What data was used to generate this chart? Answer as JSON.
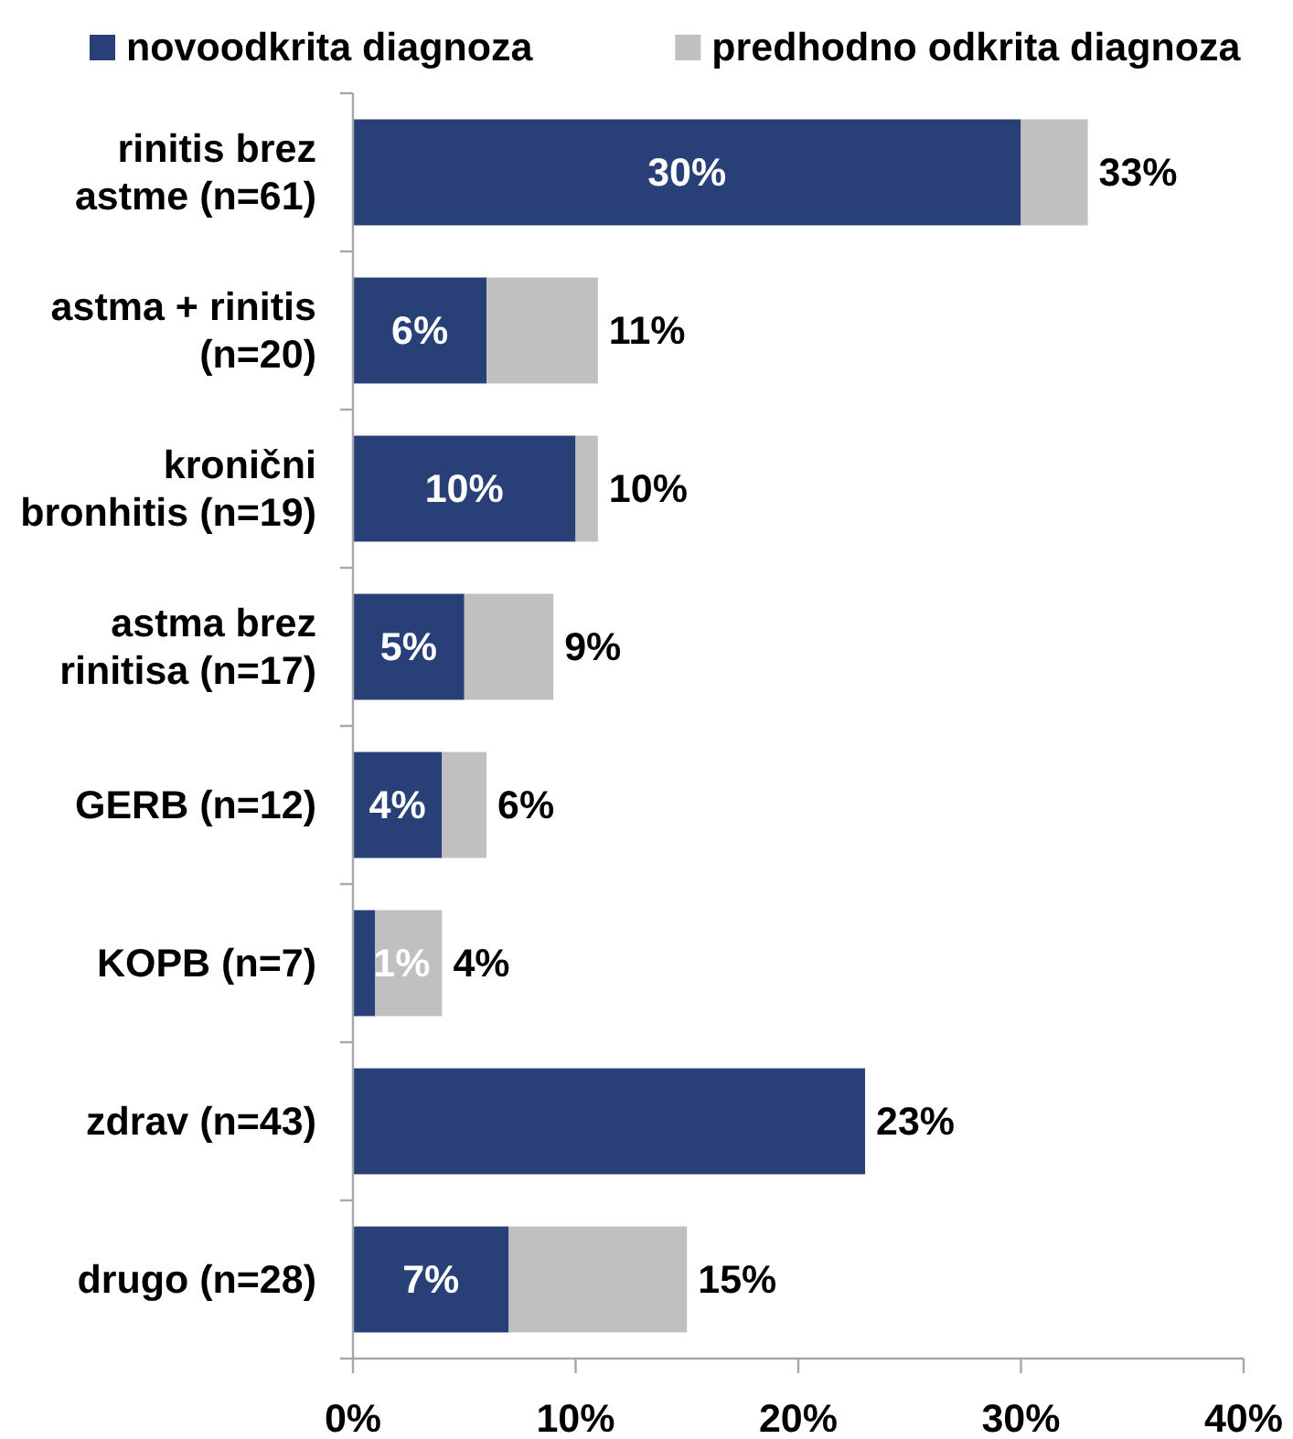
{
  "chart_data": {
    "type": "bar",
    "orientation": "horizontal",
    "stacked": true,
    "categories": [
      "rinitis brez astme (n=61)",
      "astma + rinitis (n=20)",
      "kronični bronhitis (n=19)",
      "astma brez rinitisa (n=17)",
      "GERB (n=12)",
      "KOPB (n=7)",
      "zdrav (n=43)",
      "drugo (n=28)"
    ],
    "series": [
      {
        "name": "novoodkrita diagnoza",
        "color": "#283f77",
        "values": [
          30,
          6,
          10,
          5,
          4,
          1,
          23,
          7
        ],
        "value_labels": [
          "30%",
          "6%",
          "10%",
          "5%",
          "4%",
          "1%",
          null,
          "7%"
        ]
      },
      {
        "name": "predhodno odkrita diagnoza",
        "color": "#c0c0c0",
        "values": [
          3,
          5,
          1,
          4,
          2,
          3,
          null,
          8
        ]
      }
    ],
    "totals": [
      "33%",
      "11%",
      "10%",
      "9%",
      "6%",
      "4%",
      "23%",
      "15%"
    ],
    "xlim": [
      0,
      40
    ],
    "xticks": [
      {
        "value": 0,
        "label": "0%"
      },
      {
        "value": 10,
        "label": "10%"
      },
      {
        "value": 20,
        "label": "20%"
      },
      {
        "value": 30,
        "label": "30%"
      },
      {
        "value": 40,
        "label": "40%"
      }
    ],
    "legend": "top"
  }
}
